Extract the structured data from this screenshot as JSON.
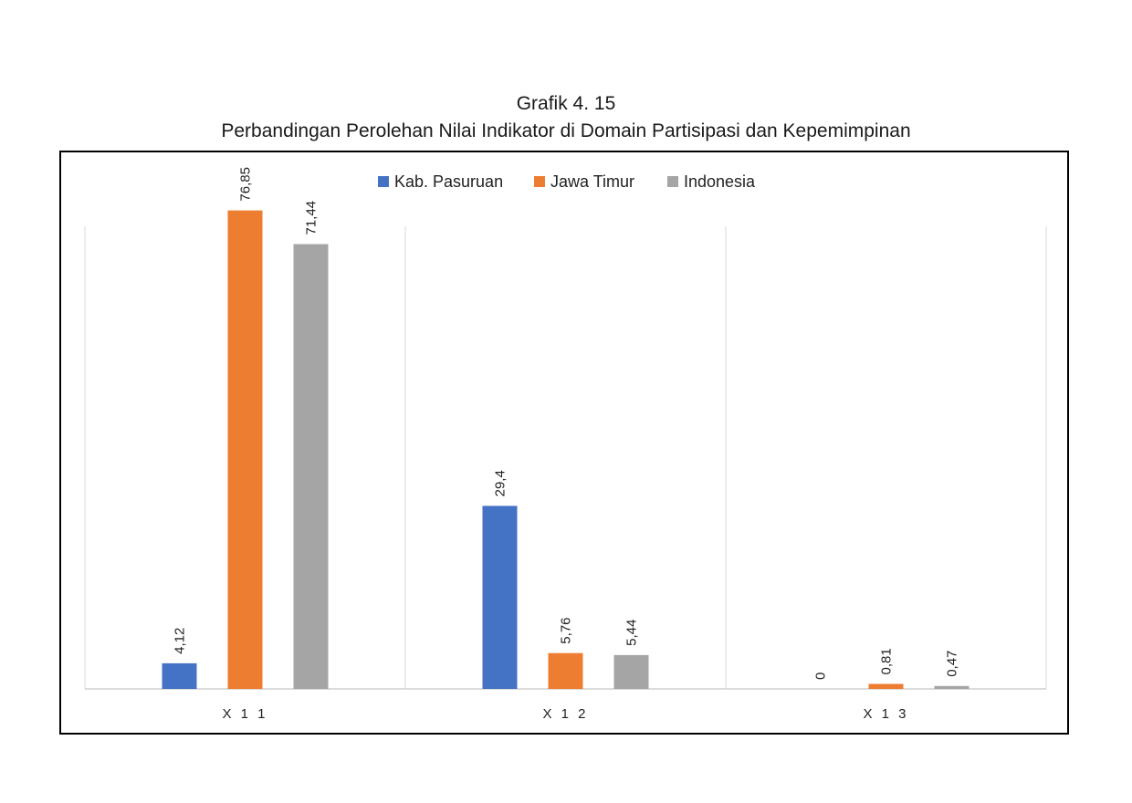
{
  "caption": {
    "line1": "Grafik 4. 15",
    "line2": "Perbandingan Perolehan Nilai Indikator di Domain Partisipasi dan Kepemimpinan"
  },
  "chart_data": {
    "type": "bar",
    "title": "",
    "xlabel": "",
    "ylabel": "",
    "categories": [
      "X11",
      "X12",
      "X13"
    ],
    "category_labels": [
      "X 1 1",
      "X 1 2",
      "X 1 3"
    ],
    "ylim": [
      0,
      85
    ],
    "grid": "vertical separators between categories",
    "legend_position": "top-center",
    "series": [
      {
        "name": "Kab. Pasuruan",
        "color": "#4472C4",
        "values": [
          4.12,
          29.4,
          0
        ],
        "labels": [
          "4,12",
          "29,4",
          "0"
        ]
      },
      {
        "name": "Jawa Timur",
        "color": "#ED7D31",
        "values": [
          76.85,
          5.76,
          0.81
        ],
        "labels": [
          "76,85",
          "5,76",
          "0,81"
        ]
      },
      {
        "name": "Indonesia",
        "color": "#A5A5A5",
        "values": [
          71.44,
          5.44,
          0.47
        ],
        "labels": [
          "71,44",
          "5,44",
          "0,47"
        ]
      }
    ]
  }
}
